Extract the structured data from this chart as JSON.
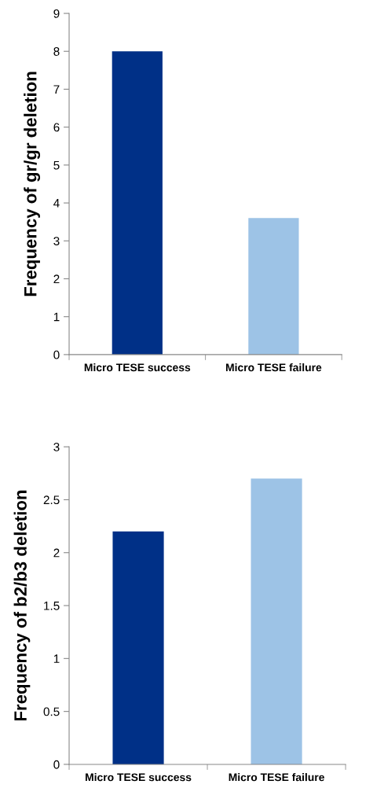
{
  "chart_data": [
    {
      "type": "bar",
      "ylabel": "Frequency of gr/gr deletion",
      "categories": [
        "Micro TESE success",
        "Micro TESE failure"
      ],
      "values": [
        8,
        3.6
      ],
      "colors": [
        "#003087",
        "#9dc3e6"
      ],
      "ylim": [
        0,
        9
      ],
      "yticks": [
        0,
        1,
        2,
        3,
        4,
        5,
        6,
        7,
        8,
        9
      ],
      "grid": false,
      "legend": false
    },
    {
      "type": "bar",
      "ylabel": "Frequency of b2/b3 deletion",
      "categories": [
        "Micro TESE success",
        "Micro TESE failure"
      ],
      "values": [
        2.2,
        2.7
      ],
      "colors": [
        "#003087",
        "#9dc3e6"
      ],
      "ylim": [
        0,
        3
      ],
      "yticks": [
        0,
        0.5,
        1,
        1.5,
        2,
        2.5,
        3
      ],
      "grid": false,
      "legend": false
    }
  ]
}
